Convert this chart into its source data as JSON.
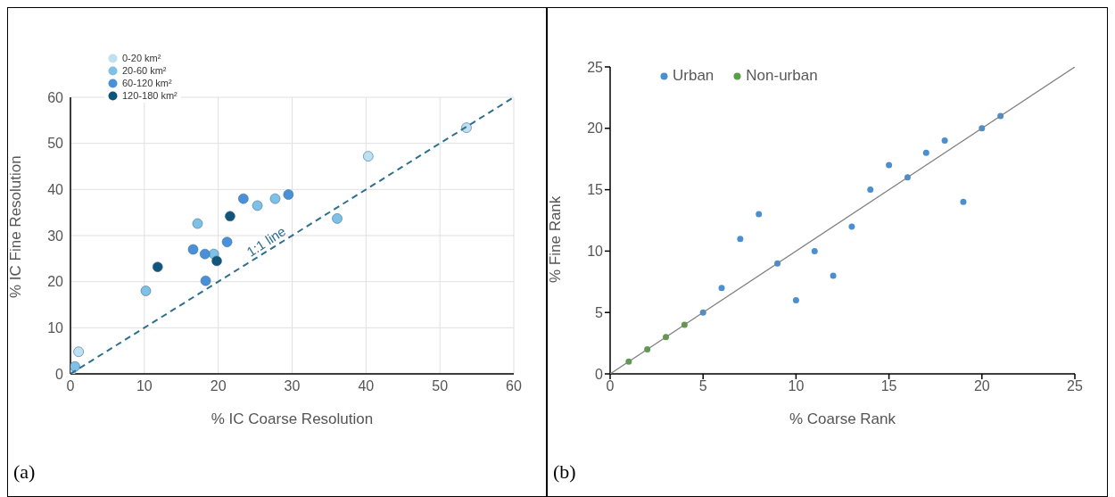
{
  "chart_data": [
    {
      "type": "scatter",
      "xlabel": "% IC Coarse Resolution",
      "ylabel": "% IC Fine Resolution",
      "xlim": [
        0,
        60
      ],
      "ylim": [
        0,
        60
      ],
      "xticks": [
        0,
        10,
        20,
        30,
        40,
        50,
        60
      ],
      "yticks": [
        0,
        10,
        20,
        30,
        40,
        50,
        60
      ],
      "grid": true,
      "legend": "top left",
      "marker": "circle",
      "annotations": [
        {
          "text": "1:1 line",
          "x": 26,
          "y": 26
        },
        "(a)"
      ],
      "series": [
        {
          "name": "0-20 km²",
          "color": "#bfdff2",
          "x": [
            0,
            1.1,
            40.3,
            53.6
          ],
          "values": [
            0,
            4.8,
            47.2,
            53.4
          ]
        },
        {
          "name": "20-60 km²",
          "color": "#7fc0e6",
          "x": [
            0.6,
            10.2,
            17.2,
            19.4,
            25.3,
            27.7,
            36.1
          ],
          "values": [
            1.6,
            18.0,
            32.6,
            26.0,
            36.5,
            38.0,
            33.7
          ]
        },
        {
          "name": "60-120 km²",
          "color": "#4a90d9",
          "x": [
            16.6,
            18.2,
            18.3,
            21.2,
            23.4,
            29.5
          ],
          "values": [
            27.0,
            26.0,
            20.2,
            28.6,
            38.0,
            38.9
          ]
        },
        {
          "name": "120-180 km²",
          "color": "#12557a",
          "x": [
            11.8,
            19.8,
            21.6
          ],
          "values": [
            23.2,
            24.5,
            34.2
          ]
        },
        {
          "type": "line",
          "color": "#2e6f8e",
          "x": [
            0,
            60
          ],
          "values": [
            0,
            60
          ],
          "line_style": "dashed",
          "marker": "none"
        }
      ]
    },
    {
      "type": "scatter",
      "xlabel": "% Coarse Rank",
      "ylabel": "% Fine Rank",
      "xlim": [
        0,
        25
      ],
      "ylim": [
        0,
        25
      ],
      "xticks": [
        0,
        5,
        10,
        15,
        20,
        25
      ],
      "yticks": [
        0,
        5,
        10,
        15,
        20,
        25
      ],
      "grid": false,
      "legend": "top left",
      "marker": "circle",
      "annotations": [
        "(b)"
      ],
      "series": [
        {
          "name": "Urban",
          "color": "#4a8fd0",
          "x": [
            5,
            6,
            7,
            8,
            9,
            10,
            11,
            12,
            13,
            14,
            15,
            16,
            17,
            18,
            19,
            20,
            21
          ],
          "values": [
            5,
            7,
            11,
            13,
            9,
            6,
            10,
            8,
            12,
            15,
            17,
            16,
            18,
            19,
            14,
            20,
            21
          ]
        },
        {
          "name": "Non-urban",
          "color": "#5a9e46",
          "x": [
            1,
            2,
            3,
            4
          ],
          "values": [
            1,
            2,
            3,
            4
          ]
        },
        {
          "type": "line",
          "color": "#808080",
          "x": [
            0,
            25
          ],
          "values": [
            0,
            25
          ],
          "line_style": "solid",
          "marker": "none"
        }
      ]
    }
  ]
}
